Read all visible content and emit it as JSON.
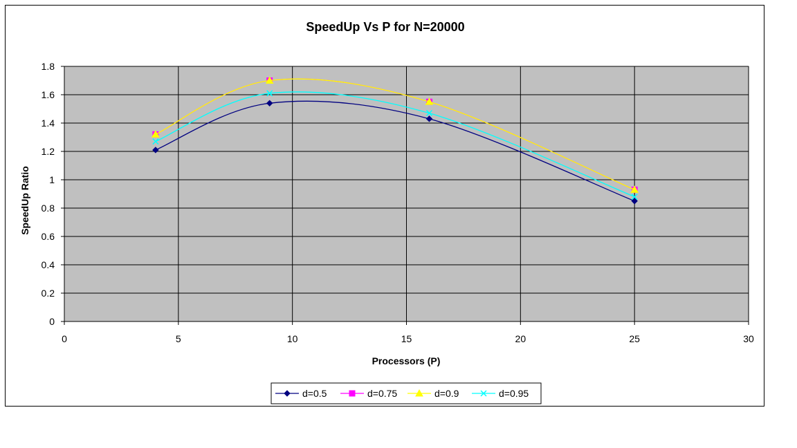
{
  "chart_data": {
    "type": "line",
    "title": "SpeedUp Vs P for N=20000",
    "xlabel": "Processors (P)",
    "ylabel": "SpeedUp Ratio",
    "xlim": [
      0,
      30
    ],
    "ylim": [
      0,
      1.8
    ],
    "xticks": [
      "0",
      "5",
      "10",
      "15",
      "20",
      "25",
      "30"
    ],
    "yticks": [
      "0",
      "0.2",
      "0.4",
      "0.6",
      "0.8",
      "1",
      "1.2",
      "1.4",
      "1.6",
      "1.8"
    ],
    "grid": true,
    "plot_background": "#c0c0c0",
    "legend_position": "bottom",
    "x": [
      4,
      9,
      16,
      25
    ],
    "series": [
      {
        "name": "d=0.5",
        "values": [
          1.21,
          1.54,
          1.43,
          0.85
        ],
        "color": "#000080",
        "marker": "diamond"
      },
      {
        "name": "d=0.75",
        "values": [
          1.32,
          1.7,
          1.55,
          0.93
        ],
        "color": "#ff00ff",
        "marker": "square"
      },
      {
        "name": "d=0.9",
        "values": [
          1.32,
          1.7,
          1.55,
          0.93
        ],
        "color": "#ffff00",
        "marker": "triangle"
      },
      {
        "name": "d=0.95",
        "values": [
          1.27,
          1.61,
          1.47,
          0.88
        ],
        "color": "#00ffff",
        "marker": "x"
      }
    ]
  }
}
